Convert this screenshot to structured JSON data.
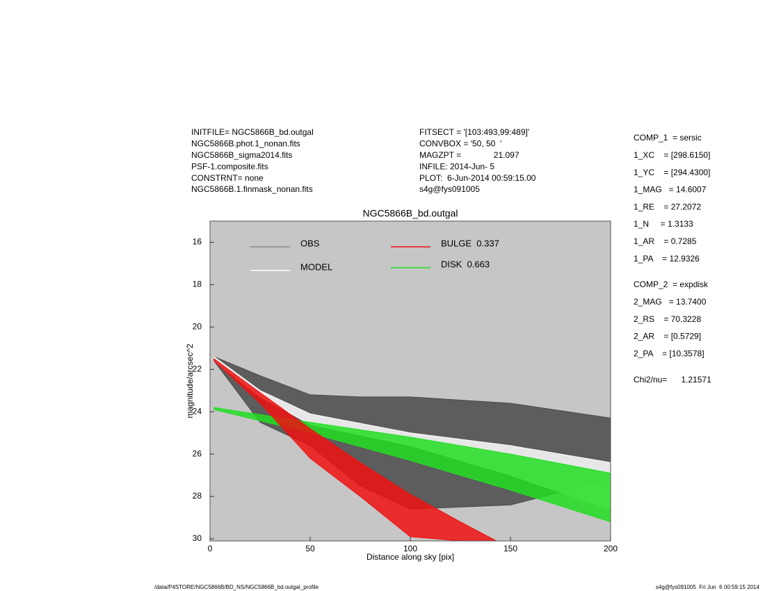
{
  "chart_data": {
    "type": "band",
    "title": "NGC5866B_bd.outgal",
    "xlabel": "Distance along sky [pix]",
    "ylabel": "magnitude/arcsec^2",
    "xlim": [
      0,
      200
    ],
    "xticks": [
      0,
      50,
      100,
      150,
      200
    ],
    "ylim": [
      15,
      30.1
    ],
    "yticks": [
      16,
      18,
      20,
      22,
      24,
      26,
      28,
      30
    ],
    "y_inverted": true,
    "background": "#c6c6c6",
    "series": [
      {
        "name": "OBS",
        "color": "#4a4a4a",
        "legend_color": "#8a8a8a",
        "x": [
          2,
          25,
          50,
          75,
          100,
          150,
          200
        ],
        "low": [
          21.4,
          22.3,
          23.2,
          23.3,
          23.3,
          23.6,
          24.3
        ],
        "high": [
          21.6,
          24.5,
          25.6,
          27.5,
          28.6,
          28.4,
          27.2
        ]
      },
      {
        "name": "MODEL",
        "color": "#ffffff",
        "legend_color": "#ffffff",
        "x": [
          2,
          25,
          50,
          100,
          150,
          200
        ],
        "low": [
          21.4,
          23.0,
          24.1,
          25.0,
          25.6,
          26.4
        ],
        "high": [
          21.6,
          23.3,
          24.6,
          25.6,
          27.0,
          28.6
        ]
      },
      {
        "name": "DISK  0.663",
        "color": "#22dd22",
        "legend_color": "#22dd22",
        "x": [
          2,
          50,
          100,
          150,
          200
        ],
        "low": [
          23.8,
          24.5,
          25.2,
          26.0,
          26.9
        ],
        "high": [
          23.9,
          25.0,
          26.3,
          27.7,
          29.2
        ]
      },
      {
        "name": "BULGE  0.337",
        "color": "#ee1111",
        "legend_color": "#ee1111",
        "x": [
          2,
          25,
          50,
          75,
          100,
          125,
          143
        ],
        "low": [
          21.5,
          23.1,
          24.8,
          26.4,
          27.9,
          29.2,
          30.1
        ],
        "high": [
          21.6,
          23.6,
          26.2,
          28.0,
          29.9,
          30.1,
          30.1
        ]
      }
    ]
  },
  "header_left": [
    "INITFILE= NGC5866B_bd.outgal",
    "NGC5866B.phot.1_nonan.fits",
    "NGC5866B_sigma2014.fits",
    "PSF-1.composite.fits",
    "CONSTRNT= none",
    "NGC5866B.1.finmask_nonan.fits"
  ],
  "header_middle": [
    "FITSECT = '[103:493,99:489]'",
    "CONVBOX = '50, 50  '",
    "MAGZPT =              21.097",
    "INFILE: 2014-Jun- 5",
    "PLOT:  6-Jun-2014 00:59:15.00",
    "s4g@fys091005"
  ],
  "params_comp1": [
    "COMP_1  = sersic",
    "1_XC    = [298.6150]",
    "1_YC    = [294.4300]",
    "1_MAG   = 14.6007",
    "1_RE    = 27.2072",
    "1_N     = 1.3133",
    "1_AR    = 0.7285",
    "1_PA    = 12.9326"
  ],
  "params_comp2": [
    "COMP_2  = expdisk",
    "2_MAG   = 13.7400",
    "2_RS    = 70.3228",
    "2_AR    = [0.5729]",
    "2_PA    = [10.3578]"
  ],
  "chi2": "Chi2/nu=      1.21571",
  "footer_left": "/data/P4STORE/NGC5866B/BD_NS/NGC5866B_bd.outgal_profile",
  "footer_right": "s4g@fys091005  Fri Jun  6 00:59:15 2014"
}
